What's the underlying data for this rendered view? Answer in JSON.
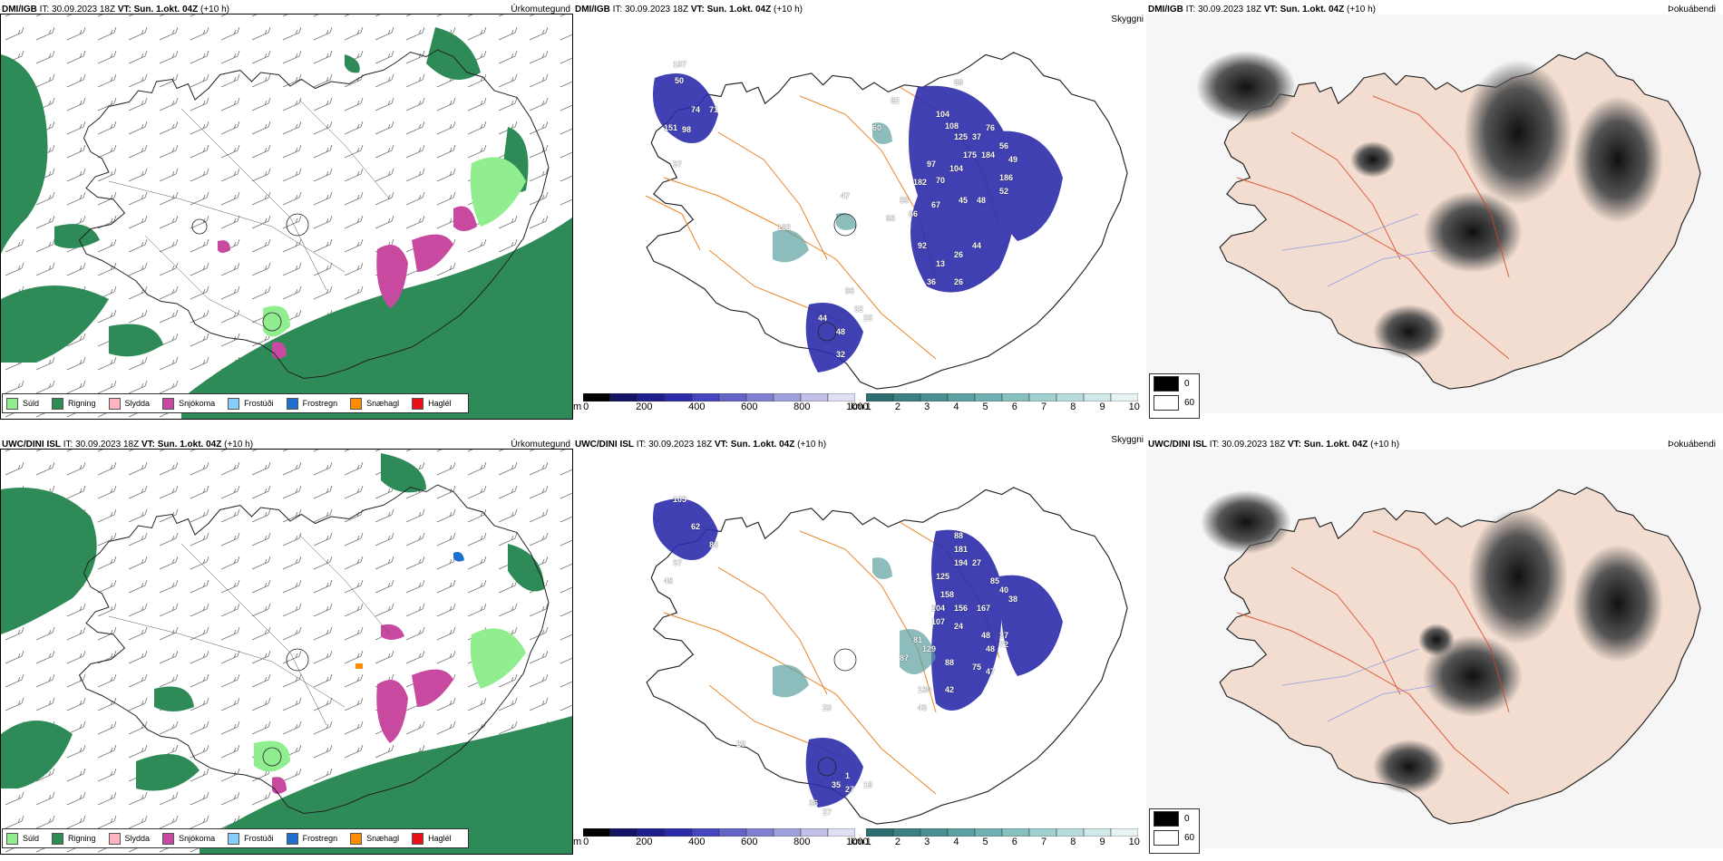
{
  "rows": [
    {
      "model": "DMI/IGB",
      "it_label": "IT:",
      "it_value": "30.09.2023 18Z",
      "vt_label": "VT:",
      "vt_value": "Sun. 1.okt. 04Z",
      "lead": "(+10 h)",
      "labels": {
        "precip": "Úrkomutegund",
        "visibility": "Skyggni",
        "cloud": "Þokuábendi"
      },
      "thickness_labels": [
        "107",
        "50",
        "74",
        "71",
        "151",
        "98",
        "37",
        "162",
        "47",
        "60",
        "82",
        "69",
        "104",
        "108",
        "125",
        "37",
        "76",
        "97",
        "175",
        "184",
        "56",
        "49",
        "104",
        "182",
        "70",
        "186",
        "52",
        "45",
        "50",
        "66",
        "67",
        "48",
        "95",
        "92",
        "13",
        "26",
        "44",
        "36",
        "26",
        "96",
        "44",
        "48",
        "32",
        "32",
        "25"
      ]
    },
    {
      "model": "UWC/DINI ISL",
      "it_label": "IT:",
      "it_value": "30.09.2023 18Z",
      "vt_label": "VT:",
      "vt_value": "Sun. 1.okt. 04Z",
      "lead": "(+10 h)",
      "labels": {
        "precip": "Úrkomutegund",
        "visibility": "Skyggni",
        "cloud": "Þokuábendi"
      },
      "thickness_labels": [
        "105",
        "62",
        "80",
        "37",
        "48",
        "88",
        "181",
        "194",
        "27",
        "125",
        "85",
        "40",
        "38",
        "158",
        "156",
        "167",
        "104",
        "107",
        "24",
        "48",
        "37",
        "81",
        "129",
        "48",
        "87",
        "88",
        "75",
        "47",
        "72",
        "130",
        "43",
        "42",
        "20",
        "29",
        "35",
        "27",
        "36",
        "27",
        "19",
        "1"
      ]
    }
  ],
  "precip_legend": [
    {
      "label": "Súld",
      "color": "#90ee90"
    },
    {
      "label": "Rigning",
      "color": "#2e8b57"
    },
    {
      "label": "Slydda",
      "color": "#ffb6c1"
    },
    {
      "label": "Snjókoma",
      "color": "#c74aa0"
    },
    {
      "label": "Frostúði",
      "color": "#87cefa"
    },
    {
      "label": "Frostregn",
      "color": "#1e6fd0"
    },
    {
      "label": "Snæhagl",
      "color": "#ff8c00"
    },
    {
      "label": "Haglél",
      "color": "#e8111b"
    }
  ],
  "colorbar_m": {
    "unit": "m",
    "ticks": [
      "0",
      "200",
      "400",
      "600",
      "800",
      "1000"
    ],
    "colors": [
      "#000000",
      "#141464",
      "#1e1e8c",
      "#2c2cab",
      "#4646c0",
      "#6464c8",
      "#8080d0",
      "#a0a0dc",
      "#c0c0e8",
      "#e0e0f4"
    ]
  },
  "colorbar_km": {
    "unit": "km",
    "ticks": [
      "1",
      "2",
      "3",
      "4",
      "5",
      "6",
      "7",
      "8",
      "9",
      "10"
    ],
    "colors": [
      "#2e6e6e",
      "#3c8080",
      "#4a9090",
      "#5ca0a0",
      "#70b0b0",
      "#88c0c0",
      "#a0d0d0",
      "#b8dcdc",
      "#d0e8e8",
      "#e8f4f4"
    ]
  },
  "grey_legend": [
    {
      "value": "0",
      "color": "#000000"
    },
    {
      "value": "60",
      "color": "#ffffff"
    }
  ],
  "colors": {
    "land_cloud": "#f2ddd0",
    "rain": "#2e8b57",
    "snow": "#c74aa0",
    "roads_orange": "#e8862a",
    "roads_red": "#d9401c",
    "rivers": "#7a8de8",
    "low_cloud_blue": "#1e1e8c"
  }
}
